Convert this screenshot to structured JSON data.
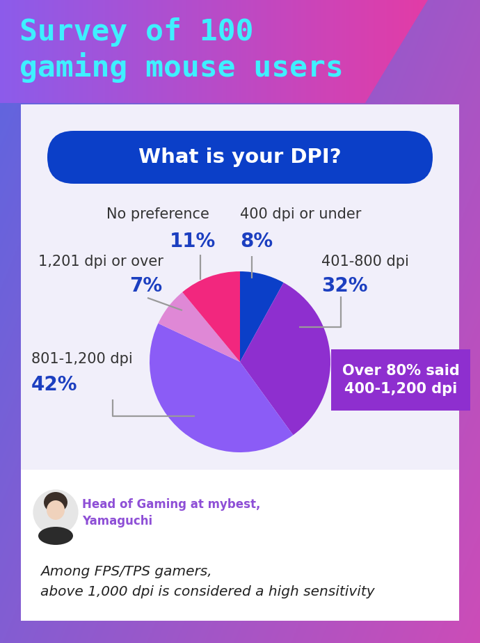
{
  "chart_data": {
    "type": "pie",
    "title": "Survey of 100\ngaming mouse users",
    "subtitle": "What is your DPI?",
    "categories": [
      "400 dpi or under",
      "401-800 dpi",
      "801-1,200 dpi",
      "1,201 dpi or over",
      "No preference"
    ],
    "values": [
      8,
      32,
      42,
      7,
      11
    ],
    "value_labels": [
      "8%",
      "32%",
      "42%",
      "7%",
      "11%"
    ],
    "data_labels": true,
    "colors": [
      "#0b3fc8",
      "#8e2fcf",
      "#8b5cf6",
      "#df88d6",
      "#f2277e"
    ],
    "annotations": [
      "Over 80% said\n400-1,200 dpi",
      "Head of Gaming at mybest,\nYamaguchi",
      "Among FPS/TPS gamers,\nabove 1,000 dpi is considered a high sensitivity"
    ]
  }
}
